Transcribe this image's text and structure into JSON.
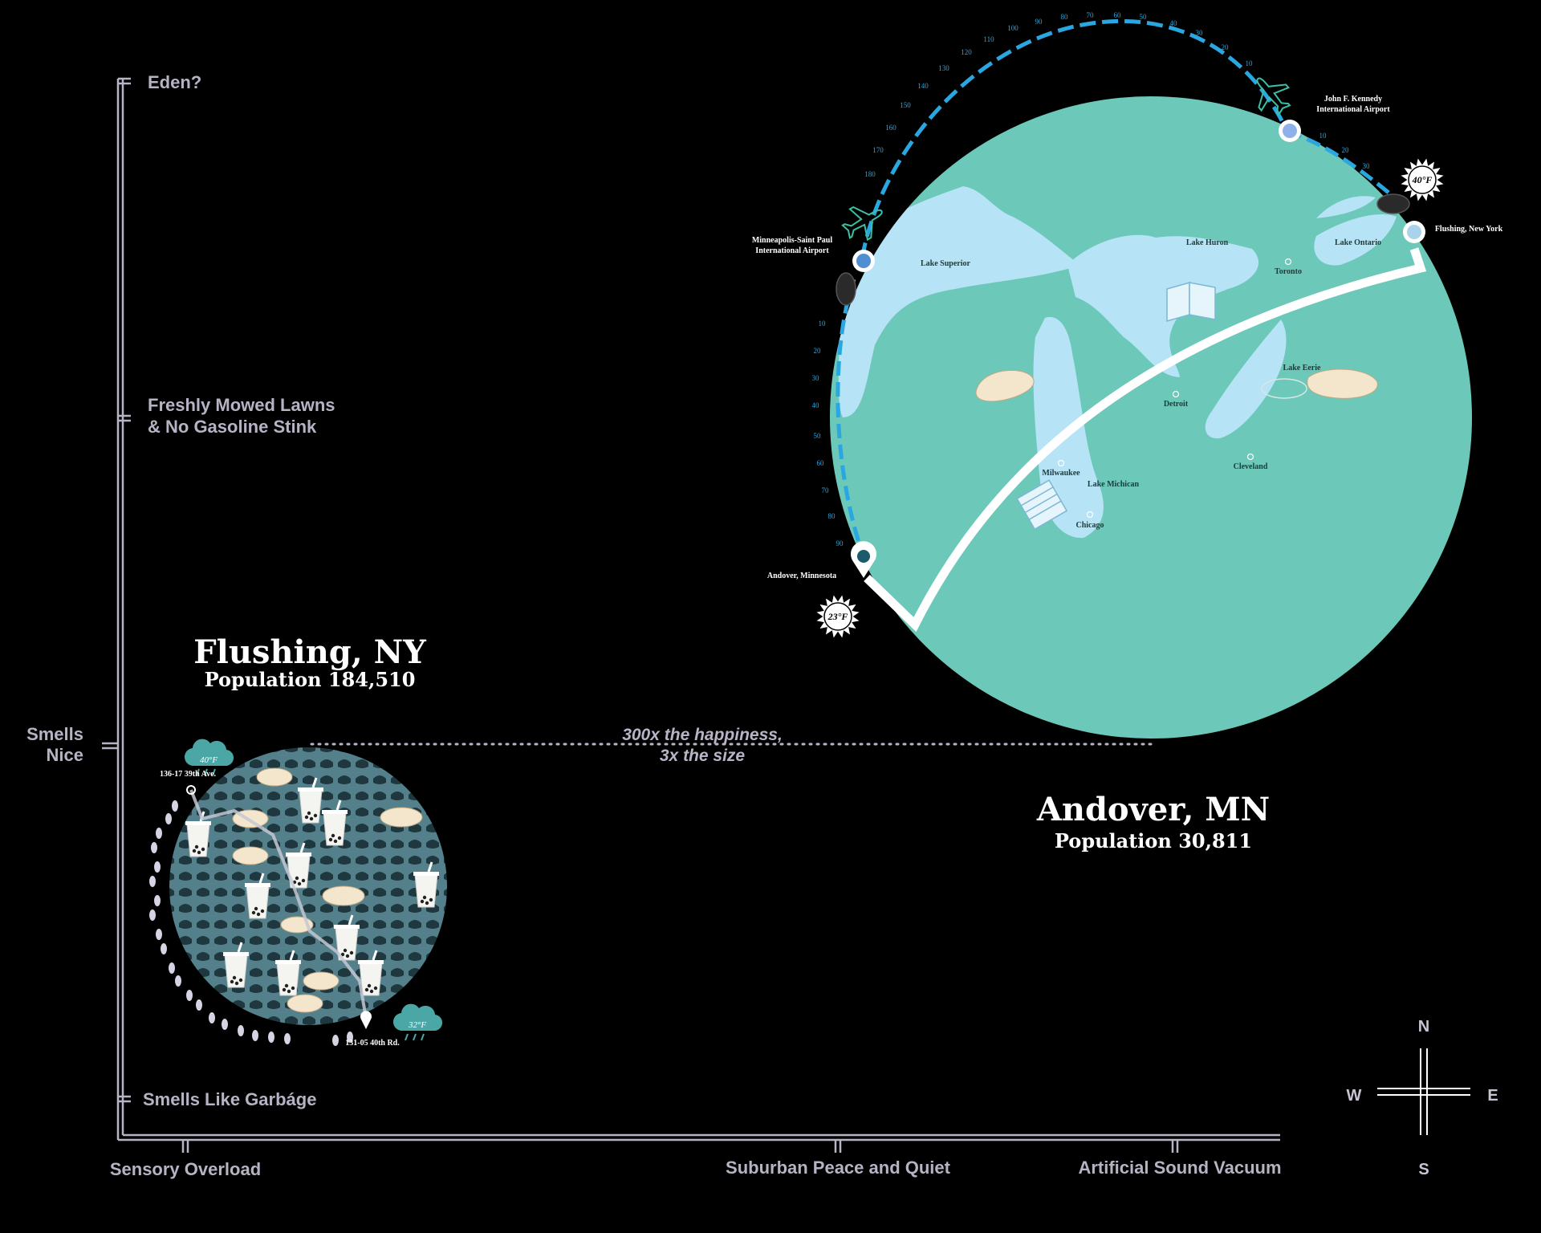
{
  "y_axis": {
    "top": "Eden?",
    "upper_line1": "Freshly Mowed Lawns",
    "upper_line2": "& No Gasoline Stink",
    "mid_line1": "Smells",
    "mid_line2": "Nice",
    "bottom": "Smells Like Garbáge"
  },
  "x_axis": {
    "left": "Sensory Overload",
    "mid": "Suburban Peace and Quiet",
    "right": "Artificial Sound Vacuum"
  },
  "flushing": {
    "title": "Flushing, NY",
    "population": "Population 184,510",
    "start_address": "136-17 39th Ave.",
    "end_address": "131-05 40th Rd.",
    "temp_top": "40°F",
    "temp_bottom": "32°F"
  },
  "andover": {
    "title": "Andover, MN",
    "population": "Population 30,811"
  },
  "comparison": {
    "line1": "300x the happiness,",
    "line2": "3x the size"
  },
  "map": {
    "lakes": [
      "Lake Superior",
      "Lake Huron",
      "Lake Ontario",
      "Lake Eerie",
      "Lake Michican"
    ],
    "cities": [
      "Toronto",
      "Detroit",
      "Milwaukee",
      "Cleveland",
      "Chicago"
    ],
    "msp_line1": "Minneapolis-Saint Paul",
    "msp_line2": "International Airport",
    "jfk_line1": "John F. Kennedy",
    "jfk_line2": "International Airport",
    "flushing_label": "Flushing, New York",
    "andover_label": "Andover, Minnesota",
    "temp_andover": "23°F",
    "temp_flushing": "40°F",
    "flight_ticks": [
      "10",
      "20",
      "30",
      "40",
      "50",
      "60",
      "70",
      "80",
      "90",
      "100",
      "110",
      "120",
      "130",
      "140",
      "150",
      "160",
      "170",
      "180"
    ],
    "drive_ticks_left": [
      "10",
      "20",
      "30",
      "40",
      "50",
      "60",
      "70",
      "80",
      "90"
    ],
    "drive_ticks_right": [
      "10",
      "20",
      "30"
    ]
  },
  "compass": {
    "n": "N",
    "s": "S",
    "e": "E",
    "w": "W"
  },
  "colors": {
    "background": "#000000",
    "axis": "#b9b3c7",
    "land": "#6cc8b8",
    "water": "#b6e3f6",
    "route": "#2aa7e0",
    "flushing_circle": "#4f7f87"
  }
}
